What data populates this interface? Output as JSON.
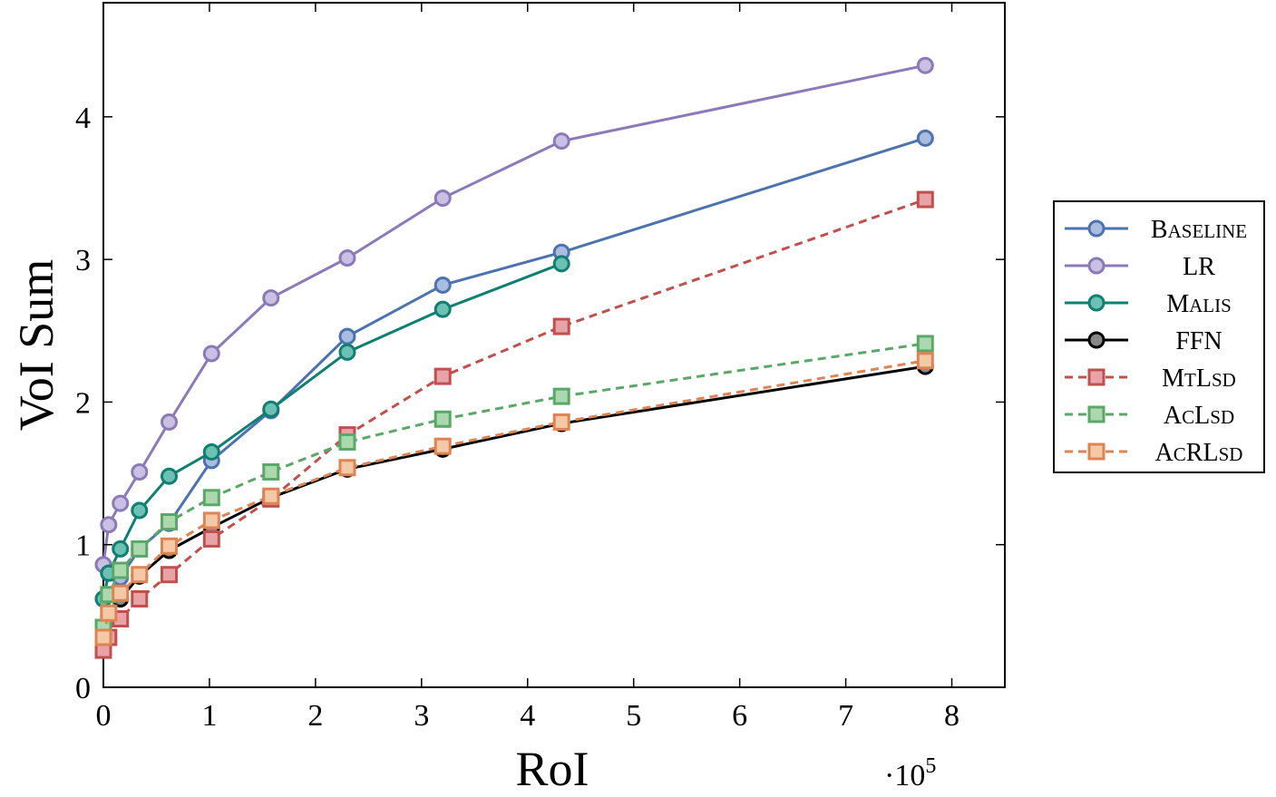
{
  "chart_data": {
    "type": "line",
    "xlabel": "RoI",
    "ylabel": "VoI Sum",
    "x_multiplier_label": "·10",
    "x_multiplier_exp": "5",
    "x_scale": 100000,
    "xlim": [
      0,
      8.5
    ],
    "ylim": [
      0,
      4.8
    ],
    "xticks": [
      0,
      1,
      2,
      3,
      4,
      5,
      6,
      7,
      8
    ],
    "yticks": [
      0,
      1,
      2,
      3,
      4
    ],
    "grid": false,
    "legend_position": "outside-right",
    "series": [
      {
        "name": "Baseline",
        "smallcaps": true,
        "color": "#4c72b0",
        "fill": "#a9bde0",
        "dash": false,
        "marker": "circle",
        "x": [
          0.0,
          0.05,
          0.16,
          0.34,
          0.62,
          1.02,
          1.58,
          2.3,
          3.2,
          4.32,
          7.75
        ],
        "y": [
          0.62,
          0.8,
          0.77,
          0.97,
          1.15,
          1.59,
          1.94,
          2.46,
          2.82,
          3.05,
          3.85
        ]
      },
      {
        "name": "LR",
        "smallcaps": false,
        "color": "#8c7ab8",
        "fill": "#c9c0e3",
        "dash": false,
        "marker": "circle",
        "x": [
          0.0,
          0.05,
          0.16,
          0.34,
          0.62,
          1.02,
          1.58,
          2.3,
          3.2,
          4.32,
          7.75
        ],
        "y": [
          0.86,
          1.14,
          1.29,
          1.51,
          1.86,
          2.34,
          2.73,
          3.01,
          3.43,
          3.83,
          4.36
        ]
      },
      {
        "name": "Malis",
        "smallcaps": true,
        "color": "#0f7f72",
        "fill": "#6cc0b4",
        "dash": false,
        "marker": "circle",
        "x": [
          0.0,
          0.05,
          0.16,
          0.34,
          0.62,
          1.02,
          1.58,
          2.3,
          3.2,
          4.32
        ],
        "y": [
          0.62,
          0.8,
          0.97,
          1.24,
          1.48,
          1.65,
          1.95,
          2.35,
          2.65,
          2.97
        ]
      },
      {
        "name": "FFN",
        "smallcaps": false,
        "color": "#000000",
        "fill": "#888888",
        "dash": false,
        "marker": "circle",
        "x": [
          0.0,
          0.05,
          0.16,
          0.34,
          0.62,
          1.02,
          1.58,
          2.3,
          3.2,
          4.32,
          7.75
        ],
        "y": [
          0.36,
          0.5,
          0.62,
          0.78,
          0.96,
          1.12,
          1.33,
          1.53,
          1.67,
          1.85,
          2.25
        ]
      },
      {
        "name": "MtLsd",
        "smallcaps": true,
        "color": "#c0504d",
        "fill": "#e8a3a8",
        "dash": true,
        "marker": "square",
        "x": [
          0.0,
          0.05,
          0.16,
          0.34,
          0.62,
          1.02,
          1.58,
          2.3,
          3.2,
          4.32,
          7.75
        ],
        "y": [
          0.26,
          0.35,
          0.48,
          0.62,
          0.79,
          1.04,
          1.32,
          1.77,
          2.18,
          2.53,
          3.42
        ]
      },
      {
        "name": "AcLsd",
        "smallcaps": true,
        "color": "#5aa867",
        "fill": "#acd8b0",
        "dash": true,
        "marker": "square",
        "x": [
          0.0,
          0.05,
          0.16,
          0.34,
          0.62,
          1.02,
          1.58,
          2.3,
          3.2,
          4.32,
          7.75
        ],
        "y": [
          0.42,
          0.65,
          0.82,
          0.97,
          1.16,
          1.33,
          1.51,
          1.72,
          1.88,
          2.04,
          2.41
        ]
      },
      {
        "name": "AcRLsd",
        "smallcaps": true,
        "color": "#dd8452",
        "fill": "#f3c9a8",
        "dash": true,
        "marker": "square",
        "x": [
          0.0,
          0.05,
          0.16,
          0.34,
          0.62,
          1.02,
          1.58,
          2.3,
          3.2,
          4.32,
          7.75
        ],
        "y": [
          0.35,
          0.52,
          0.66,
          0.79,
          0.99,
          1.17,
          1.34,
          1.54,
          1.69,
          1.86,
          2.29
        ]
      }
    ]
  }
}
